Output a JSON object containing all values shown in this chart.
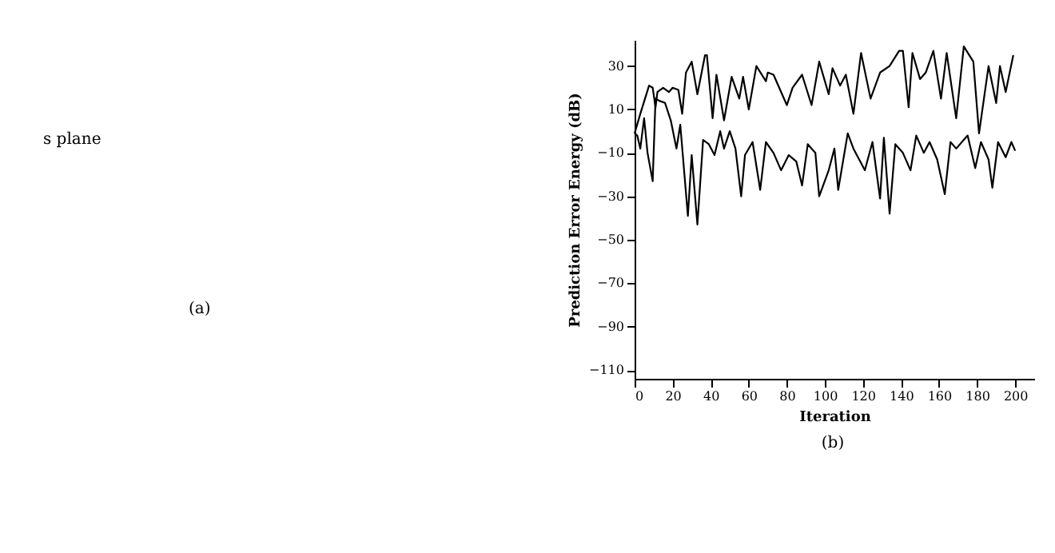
{
  "chart_data": [
    {
      "type": "other",
      "annotations": [
        "s plane",
        "(a)"
      ]
    },
    {
      "type": "line",
      "xlabel": "Iteration",
      "ylabel": "Prediction Error Energy (dB)",
      "annotations": [
        "(b)"
      ],
      "xlim": [
        0,
        210
      ],
      "xticks": [
        0,
        20,
        40,
        60,
        80,
        100,
        120,
        140,
        160,
        180,
        200
      ],
      "ylim": [
        -114,
        42
      ],
      "yticks": [
        30,
        10,
        -10,
        -30,
        -50,
        -70,
        -90,
        -110
      ],
      "grid": false,
      "legend": false,
      "marker": "none",
      "line_style": "solid",
      "series": [
        {
          "color": "#000000",
          "x": [
            0,
            3,
            7.6,
            9.5,
            11,
            12,
            15,
            18,
            20,
            23,
            25,
            27,
            30,
            33,
            37,
            38,
            41,
            43,
            47,
            51,
            55,
            57,
            60,
            64,
            69,
            70,
            73,
            80,
            83,
            88,
            93,
            97,
            102,
            104,
            108,
            111,
            115,
            119,
            124,
            129,
            134,
            139,
            141,
            144,
            146,
            150,
            153,
            157,
            161,
            164,
            169,
            173,
            178,
            181,
            186,
            190,
            192,
            195,
            199
          ],
          "values": [
            -1,
            8,
            21,
            20,
            11,
            18,
            20,
            18,
            20,
            19,
            8,
            27,
            32,
            17,
            35,
            35,
            6,
            26,
            5,
            25,
            15,
            25,
            10,
            30,
            23,
            27,
            26,
            12,
            20,
            26,
            12,
            32,
            17,
            29,
            21,
            26,
            8,
            36,
            15,
            27,
            30,
            37,
            37,
            11,
            36,
            24,
            27,
            37,
            15,
            36,
            6,
            39,
            32,
            -1,
            30,
            13,
            30,
            18,
            35
          ]
        },
        {
          "color": "#000000",
          "x": [
            0,
            1.4,
            3,
            5,
            6.8,
            9.5,
            11,
            13,
            16,
            19,
            22,
            24,
            28,
            30,
            33,
            36,
            39,
            42,
            45,
            47,
            50,
            53,
            56,
            58,
            62,
            66,
            69,
            73,
            77,
            81,
            85,
            88,
            91,
            95,
            97,
            102,
            105,
            107,
            112,
            115,
            121,
            125,
            129,
            131,
            134,
            137,
            141,
            145,
            148,
            152,
            155,
            159,
            163,
            166,
            169,
            175,
            179,
            182,
            186,
            188,
            191,
            195,
            198,
            200
          ],
          "values": [
            -1,
            -2,
            -8,
            6,
            -10,
            -23,
            15,
            14,
            13,
            5,
            -8,
            3,
            -39,
            -11,
            -43,
            -4,
            -6,
            -11,
            0,
            -8,
            0,
            -8,
            -30,
            -11,
            -5,
            -27,
            -5,
            -10,
            -18,
            -11,
            -14,
            -25,
            -6,
            -10,
            -30,
            -18,
            -8,
            -27,
            -1,
            -8,
            -18,
            -5,
            -31,
            -3,
            -38,
            -6,
            -10,
            -18,
            -2,
            -10,
            -5,
            -13,
            -29,
            -5,
            -8,
            -2,
            -17,
            -5,
            -13,
            -26,
            -5,
            -12,
            -5,
            -9
          ]
        }
      ]
    }
  ]
}
